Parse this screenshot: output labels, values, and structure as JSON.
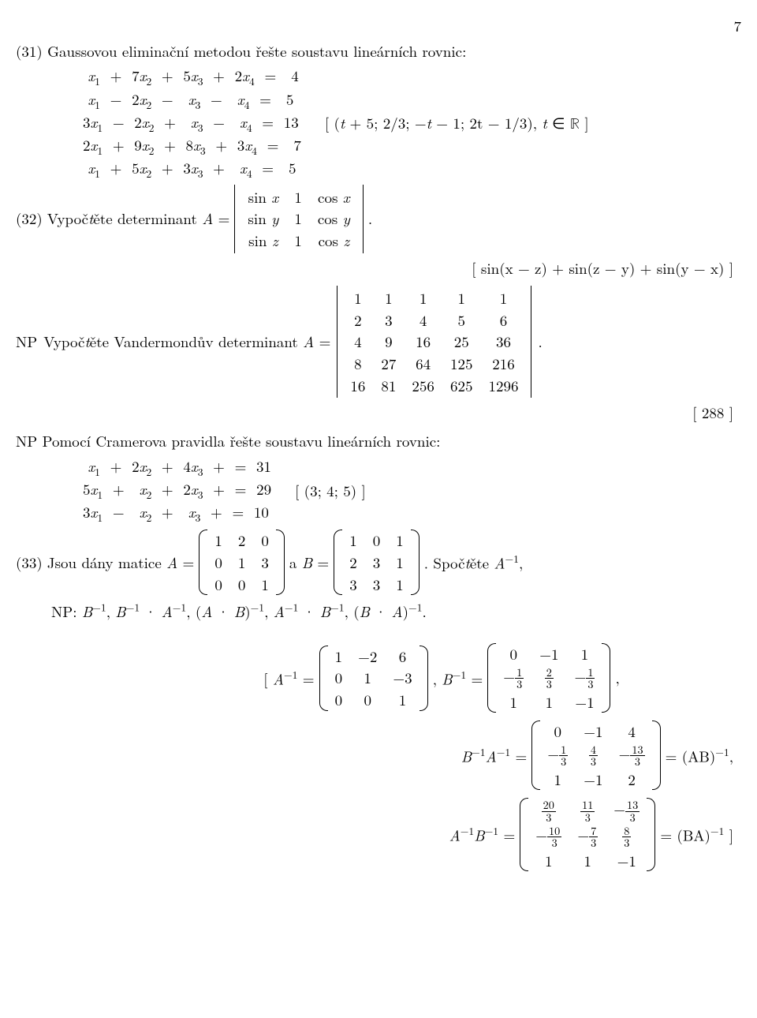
{
  "page_number": "7",
  "p31": {
    "label": "(31)",
    "text": "Gaussovou eliminační metodou řešte soustavu lineárních rovnic:",
    "system": [
      " x₁  +  7x₂  +  5x₃  +  2x₄  =   4",
      " x₁  −  2x₂  −   x₃  −   x₄  =   5",
      "3x₁  −  2x₂  +   x₃  −   x₄  =  13",
      "2x₁  +  9x₂  +  8x₃  +  3x₄  =   7",
      " x₁  +  5x₂  +  3x₃  +   x₄  =   5"
    ],
    "answer": "[ (t + 5; 2/3; −t − 1; 2t − 1/3), t ∈ ℝ ]"
  },
  "p32": {
    "label": "(32)",
    "text_before": "Vypočtěte determinant A =",
    "matrix": [
      [
        "sin x",
        "1",
        "cos x"
      ],
      [
        "sin y",
        "1",
        "cos y"
      ],
      [
        "sin z",
        "1",
        "cos z"
      ]
    ],
    "period": ".",
    "answer": "[ sin(x − z) + sin(z − y) + sin(y − x) ]"
  },
  "np_vander": {
    "label": "NP",
    "text": "Vypočtěte Vandermondův determinant A =",
    "matrix": [
      [
        "1",
        "1",
        "1",
        "1",
        "1"
      ],
      [
        "2",
        "3",
        "4",
        "5",
        "6"
      ],
      [
        "4",
        "9",
        "16",
        "25",
        "36"
      ],
      [
        "8",
        "27",
        "64",
        "125",
        "216"
      ],
      [
        "16",
        "81",
        "256",
        "625",
        "1296"
      ]
    ],
    "period": ".",
    "answer": "[ 288 ]"
  },
  "np_cramer": {
    "label": "NP",
    "text": "Pomocí Cramerova pravidla řešte soustavu lineárních rovnic:",
    "system": [
      " x₁  +  2x₂  +  4x₃  +  =  31",
      "5x₁  +   x₂  +  2x₃  +  =  29",
      "3x₁  −   x₂  +   x₃  +  =  10"
    ],
    "answer": "[ (3; 4; 5) ]"
  },
  "p33": {
    "label": "(33)",
    "text_before": "Jsou dány matice A =",
    "matA": [
      [
        "1",
        "2",
        "0"
      ],
      [
        "0",
        "1",
        "3"
      ],
      [
        "0",
        "0",
        "1"
      ]
    ],
    "text_mid": " a B =",
    "matB": [
      [
        "1",
        "0",
        "1"
      ],
      [
        "2",
        "3",
        "1"
      ],
      [
        "3",
        "3",
        "1"
      ]
    ],
    "text_after": ". Spočtěte A⁻¹,",
    "np_line": "NP: B⁻¹, B⁻¹ · A⁻¹, (A · B)⁻¹, A⁻¹ · B⁻¹, (B · A)⁻¹."
  },
  "answers_block": {
    "open": "[ A⁻¹ =",
    "Ainv": [
      [
        "1",
        "−2",
        "6"
      ],
      [
        "0",
        "1",
        "−3"
      ],
      [
        "0",
        "0",
        "1"
      ]
    ],
    "sep1": ", B⁻¹ =",
    "Binv": [
      [
        "0",
        "−1",
        "1"
      ],
      [
        "−<frac>1|3</frac>",
        "<frac>2|3</frac>",
        "−<frac>1|3</frac>"
      ],
      [
        "1",
        "1",
        "−1"
      ]
    ],
    "comma": ",",
    "line2_lhs": "B⁻¹A⁻¹ =",
    "BinvAinv": [
      [
        "0",
        "−1",
        "4"
      ],
      [
        "−<frac>1|3</frac>",
        "<frac>4|3</frac>",
        "−<frac>13|3</frac>"
      ],
      [
        "1",
        "−1",
        "2"
      ]
    ],
    "line2_rhs": "= (AB)⁻¹,",
    "line3_lhs": "A⁻¹B⁻¹ =",
    "AinvBinv": [
      [
        "<frac>20|3</frac>",
        "<frac>11|3</frac>",
        "−<frac>13|3</frac>"
      ],
      [
        "−<frac>10|3</frac>",
        "−<frac>7|3</frac>",
        "<frac>8|3</frac>"
      ],
      [
        "1",
        "1",
        "−1"
      ]
    ],
    "line3_rhs": "= (BA)⁻¹ ]"
  }
}
